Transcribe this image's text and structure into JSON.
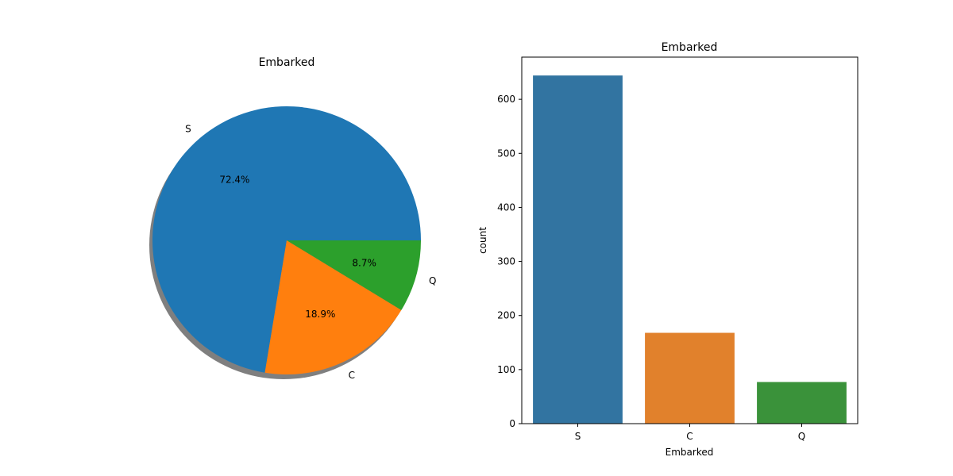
{
  "chart_data": [
    {
      "type": "pie",
      "title": "Embarked",
      "categories": [
        "S",
        "C",
        "Q"
      ],
      "values": [
        72.4,
        18.9,
        8.7
      ],
      "value_labels": [
        "72.4%",
        "18.9%",
        "8.7%"
      ],
      "colors": [
        "#1f77b4",
        "#ff7f0e",
        "#2ca02c"
      ],
      "start_angle_deg": 0,
      "direction": "counterclockwise",
      "shadow": true
    },
    {
      "type": "bar",
      "title": "Embarked",
      "xlabel": "Embarked",
      "ylabel": "count",
      "categories": [
        "S",
        "C",
        "Q"
      ],
      "values": [
        644,
        168,
        77
      ],
      "colors": [
        "#3274a1",
        "#e1812c",
        "#3a923a"
      ],
      "ylim": [
        0,
        678
      ],
      "yticks": [
        0,
        100,
        200,
        300,
        400,
        500,
        600
      ],
      "grid": false
    }
  ]
}
